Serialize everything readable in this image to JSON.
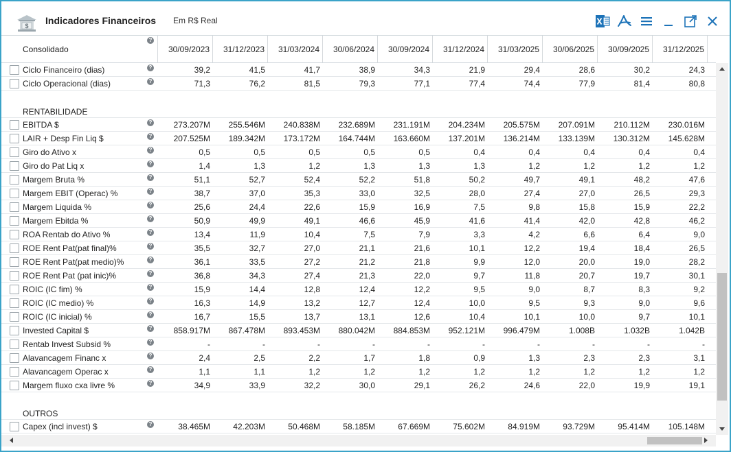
{
  "window": {
    "title": "Indicadores Financeiros",
    "subtitle": "Em R$ Real",
    "icons": [
      "bank-icon",
      "excel-icon",
      "pdf-icon",
      "menu-icon",
      "minimize-icon",
      "popout-icon",
      "close-icon"
    ],
    "accent": "#2a9fd6"
  },
  "table": {
    "first_header": "Consolidado",
    "columns": [
      "30/09/2023",
      "31/12/2023",
      "31/03/2024",
      "30/06/2024",
      "30/09/2024",
      "31/12/2024",
      "31/03/2025",
      "30/06/2025",
      "30/09/2025",
      "31/12/2025"
    ],
    "help_glyph": "?",
    "rows": [
      {
        "type": "data",
        "label": "Ciclo Financeiro (dias)",
        "values": [
          "39,2",
          "41,5",
          "41,7",
          "38,9",
          "34,3",
          "21,9",
          "29,4",
          "28,6",
          "30,2",
          "24,3"
        ]
      },
      {
        "type": "data",
        "label": "Ciclo Operacional (dias)",
        "values": [
          "71,3",
          "76,2",
          "81,5",
          "79,3",
          "77,1",
          "77,4",
          "74,4",
          "77,9",
          "81,4",
          "80,8"
        ]
      },
      {
        "type": "blank"
      },
      {
        "type": "section",
        "label": "RENTABILIDADE"
      },
      {
        "type": "data",
        "label": "EBITDA $",
        "values": [
          "273.207M",
          "255.546M",
          "240.838M",
          "232.689M",
          "231.191M",
          "204.234M",
          "205.575M",
          "207.091M",
          "210.112M",
          "230.016M"
        ]
      },
      {
        "type": "data",
        "label": "LAIR + Desp Fin Liq $",
        "values": [
          "207.525M",
          "189.342M",
          "173.172M",
          "164.744M",
          "163.660M",
          "137.201M",
          "136.214M",
          "133.139M",
          "130.312M",
          "145.628M"
        ]
      },
      {
        "type": "data",
        "label": "Giro do Ativo x",
        "values": [
          "0,5",
          "0,5",
          "0,5",
          "0,5",
          "0,5",
          "0,4",
          "0,4",
          "0,4",
          "0,4",
          "0,4"
        ]
      },
      {
        "type": "data",
        "label": "Giro do Pat Liq x",
        "values": [
          "1,4",
          "1,3",
          "1,2",
          "1,3",
          "1,3",
          "1,3",
          "1,2",
          "1,2",
          "1,2",
          "1,2"
        ]
      },
      {
        "type": "data",
        "label": "Margem Bruta %",
        "values": [
          "51,1",
          "52,7",
          "52,4",
          "52,2",
          "51,8",
          "50,2",
          "49,7",
          "49,1",
          "48,2",
          "47,6"
        ]
      },
      {
        "type": "data",
        "label": "Margem EBIT (Operac) %",
        "values": [
          "38,7",
          "37,0",
          "35,3",
          "33,0",
          "32,5",
          "28,0",
          "27,4",
          "27,0",
          "26,5",
          "29,3"
        ]
      },
      {
        "type": "data",
        "label": "Margem Liquida %",
        "values": [
          "25,6",
          "24,4",
          "22,6",
          "15,9",
          "16,9",
          "7,5",
          "9,8",
          "15,8",
          "15,9",
          "22,2"
        ]
      },
      {
        "type": "data",
        "label": "Margem Ebitda %",
        "values": [
          "50,9",
          "49,9",
          "49,1",
          "46,6",
          "45,9",
          "41,6",
          "41,4",
          "42,0",
          "42,8",
          "46,2"
        ]
      },
      {
        "type": "data",
        "label": "ROA Rentab do Ativo %",
        "values": [
          "13,4",
          "11,9",
          "10,4",
          "7,5",
          "7,9",
          "3,3",
          "4,2",
          "6,6",
          "6,4",
          "9,0"
        ]
      },
      {
        "type": "data",
        "label": "ROE Rent Pat(pat final)%",
        "values": [
          "35,5",
          "32,7",
          "27,0",
          "21,1",
          "21,6",
          "10,1",
          "12,2",
          "19,4",
          "18,4",
          "26,5"
        ]
      },
      {
        "type": "data",
        "label": "ROE Rent Pat(pat medio)%",
        "values": [
          "36,1",
          "33,5",
          "27,2",
          "21,2",
          "21,8",
          "9,9",
          "12,0",
          "20,0",
          "19,0",
          "28,2"
        ]
      },
      {
        "type": "data",
        "label": "ROE Rent Pat (pat inic)%",
        "values": [
          "36,8",
          "34,3",
          "27,4",
          "21,3",
          "22,0",
          "9,7",
          "11,8",
          "20,7",
          "19,7",
          "30,1"
        ]
      },
      {
        "type": "data",
        "label": "ROIC (IC fim) %",
        "values": [
          "15,9",
          "14,4",
          "12,8",
          "12,4",
          "12,2",
          "9,5",
          "9,0",
          "8,7",
          "8,3",
          "9,2"
        ]
      },
      {
        "type": "data",
        "label": "ROIC (IC medio) %",
        "values": [
          "16,3",
          "14,9",
          "13,2",
          "12,7",
          "12,4",
          "10,0",
          "9,5",
          "9,3",
          "9,0",
          "9,6"
        ]
      },
      {
        "type": "data",
        "label": "ROIC (IC inicial) %",
        "values": [
          "16,7",
          "15,5",
          "13,7",
          "13,1",
          "12,6",
          "10,4",
          "10,1",
          "10,0",
          "9,7",
          "10,1"
        ]
      },
      {
        "type": "data",
        "label": "Invested Capital $",
        "values": [
          "858.917M",
          "867.478M",
          "893.453M",
          "880.042M",
          "884.853M",
          "952.121M",
          "996.479M",
          "1.008B",
          "1.032B",
          "1.042B"
        ]
      },
      {
        "type": "data",
        "label": "Rentab Invest Subsid %",
        "values": [
          "-",
          "-",
          "-",
          "-",
          "-",
          "-",
          "-",
          "-",
          "-",
          "-"
        ]
      },
      {
        "type": "data",
        "label": "Alavancagem Financ x",
        "values": [
          "2,4",
          "2,5",
          "2,2",
          "1,7",
          "1,8",
          "0,9",
          "1,3",
          "2,3",
          "2,3",
          "3,1"
        ]
      },
      {
        "type": "data",
        "label": "Alavancagem Operac x",
        "values": [
          "1,1",
          "1,1",
          "1,2",
          "1,2",
          "1,2",
          "1,2",
          "1,2",
          "1,2",
          "1,2",
          "1,2"
        ]
      },
      {
        "type": "data",
        "label": "Margem fluxo cxa livre %",
        "values": [
          "34,9",
          "33,9",
          "32,2",
          "30,0",
          "29,1",
          "26,2",
          "24,6",
          "22,0",
          "19,9",
          "19,1"
        ]
      },
      {
        "type": "blank"
      },
      {
        "type": "section",
        "label": "OUTROS"
      },
      {
        "type": "data",
        "label": "Capex (incl invest) $",
        "values": [
          "38.465M",
          "42.203M",
          "50.468M",
          "58.185M",
          "67.669M",
          "75.602M",
          "84.919M",
          "93.729M",
          "95.414M",
          "105.148M"
        ]
      }
    ]
  }
}
